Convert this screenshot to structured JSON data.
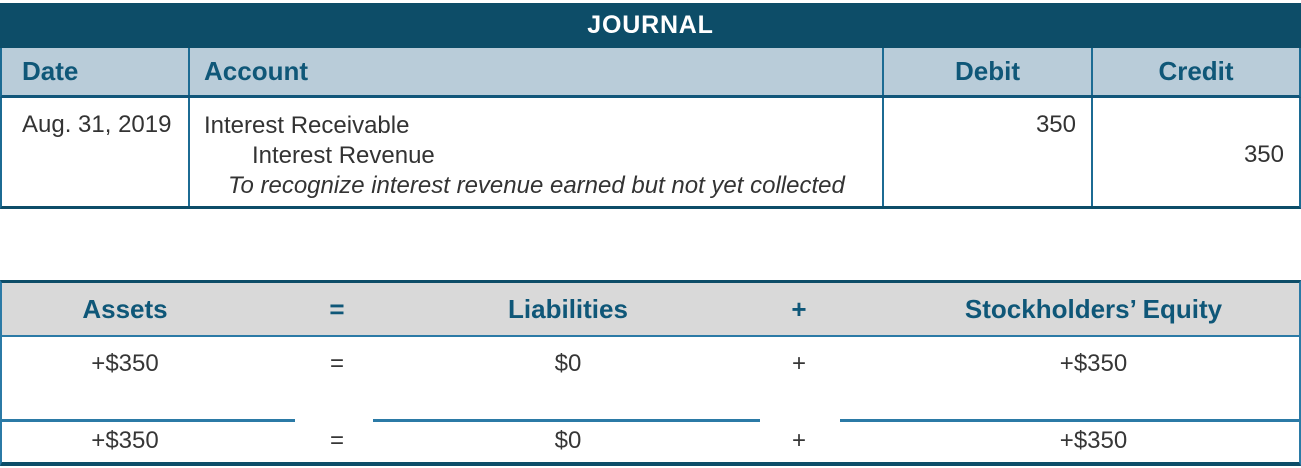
{
  "journal": {
    "title": "JOURNAL",
    "columns": {
      "date": "Date",
      "account": "Account",
      "debit": "Debit",
      "credit": "Credit"
    },
    "entry": {
      "date": "Aug. 31, 2019",
      "account_line1": "Interest Receivable",
      "account_line2": "Interest Revenue",
      "memo": "To recognize interest revenue earned but not yet collected",
      "debit": "350",
      "credit": "350"
    }
  },
  "equation": {
    "headers": {
      "assets": "Assets",
      "equals": "=",
      "liabilities": "Liabilities",
      "plus": "+",
      "equity": "Stockholders’ Equity"
    },
    "rows": [
      {
        "assets": "+$350",
        "equals": "=",
        "liabilities": "$0",
        "plus": "+",
        "equity": "+$350"
      },
      {
        "assets": "+$350",
        "equals": "=",
        "liabilities": "$0",
        "plus": "+",
        "equity": "+$350"
      }
    ]
  },
  "colors": {
    "header_band": "#0d4d68",
    "column_header_bg": "#b9ccd9",
    "header_text": "#0f5778",
    "border_teal": "#1c6b93",
    "rule_blue": "#2b7aa6",
    "equation_header_bg": "#d9d9d9",
    "body_text": "#363636"
  }
}
